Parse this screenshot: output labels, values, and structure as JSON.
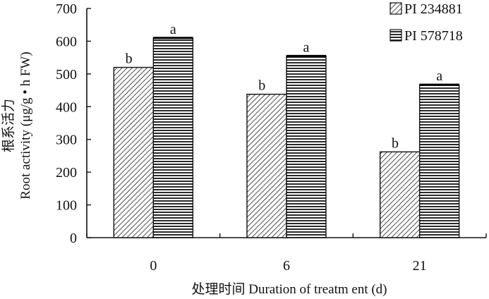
{
  "chart_data": {
    "type": "bar",
    "categories": [
      "0",
      "6",
      "21"
    ],
    "series": [
      {
        "name": "PI 234881",
        "values": [
          520,
          438,
          262
        ],
        "letters": [
          "b",
          "b",
          "b"
        ]
      },
      {
        "name": "PI 578718",
        "values": [
          610,
          555,
          467
        ],
        "letters": [
          "a",
          "a",
          "a"
        ]
      }
    ],
    "xlabel": "处理时间 Duration of treatm ent (d)",
    "ylabel_cn": "根系活力",
    "ylabel_en": "Root activity (μg/g • h  FW)",
    "ylim": [
      0,
      700
    ],
    "yticks": [
      0,
      100,
      200,
      300,
      400,
      500,
      600,
      700
    ],
    "grid": false,
    "legend_position": "top-right"
  }
}
